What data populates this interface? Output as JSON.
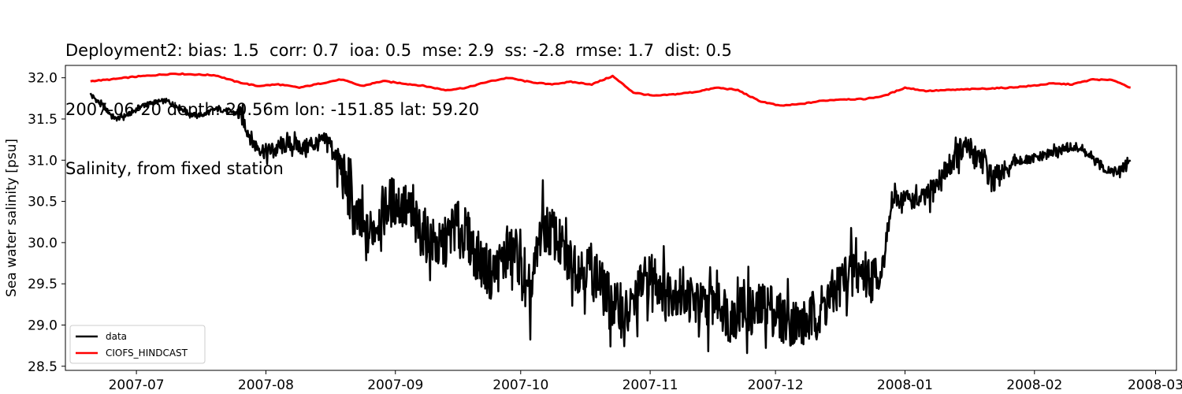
{
  "title": {
    "line1": "Deployment2: bias: 1.5  corr: 0.7  ioa: 0.5  mse: 2.9  ss: -2.8  rmse: 1.7  dist: 0.5",
    "line2": "2007-06-20 depth: 20.56m lon: -151.85 lat: 59.20",
    "line3": "Salinity, from fixed station"
  },
  "chart_data": {
    "type": "line",
    "xlabel": "",
    "ylabel": "Sea water salinity [psu]",
    "x_ticks": [
      "2007-07",
      "2007-08",
      "2007-09",
      "2007-10",
      "2007-11",
      "2007-12",
      "2008-01",
      "2008-02",
      "2008-03"
    ],
    "y_ticks": [
      "28.5",
      "29.0",
      "29.5",
      "30.0",
      "30.5",
      "31.0",
      "31.5",
      "32.0"
    ],
    "xlim": [
      "2007-06-14",
      "2008-03-06"
    ],
    "ylim": [
      28.45,
      32.15
    ],
    "grid": false,
    "legend": {
      "location": "lower-left",
      "entries": [
        "data",
        "CIOFS_HINDCAST"
      ]
    },
    "series": [
      {
        "name": "data",
        "color": "#000000",
        "x": [
          "2007-06-20",
          "2007-06-23",
          "2007-06-26",
          "2007-06-29",
          "2007-07-02",
          "2007-07-05",
          "2007-07-08",
          "2007-07-11",
          "2007-07-14",
          "2007-07-17",
          "2007-07-20",
          "2007-07-23",
          "2007-07-26",
          "2007-07-29",
          "2007-08-01",
          "2007-08-04",
          "2007-08-07",
          "2007-08-10",
          "2007-08-13",
          "2007-08-16",
          "2007-08-19",
          "2007-08-22",
          "2007-08-25",
          "2007-08-28",
          "2007-08-31",
          "2007-09-03",
          "2007-09-06",
          "2007-09-09",
          "2007-09-12",
          "2007-09-15",
          "2007-09-18",
          "2007-09-21",
          "2007-09-24",
          "2007-09-27",
          "2007-09-30",
          "2007-10-03",
          "2007-10-06",
          "2007-10-09",
          "2007-10-12",
          "2007-10-15",
          "2007-10-18",
          "2007-10-21",
          "2007-10-24",
          "2007-10-27",
          "2007-10-30",
          "2007-11-02",
          "2007-11-05",
          "2007-11-08",
          "2007-11-11",
          "2007-11-14",
          "2007-11-17",
          "2007-11-20",
          "2007-11-23",
          "2007-11-26",
          "2007-11-29",
          "2007-12-02",
          "2007-12-05",
          "2007-12-08",
          "2007-12-11",
          "2007-12-14",
          "2007-12-17",
          "2007-12-20",
          "2007-12-23",
          "2007-12-26",
          "2007-12-29",
          "2008-01-01",
          "2008-01-04",
          "2008-01-07",
          "2008-01-10",
          "2008-01-13",
          "2008-01-16",
          "2008-01-19",
          "2008-01-22",
          "2008-01-25",
          "2008-01-28",
          "2008-01-31",
          "2008-02-03",
          "2008-02-06",
          "2008-02-09",
          "2008-02-12",
          "2008-02-15",
          "2008-02-18",
          "2008-02-21",
          "2008-02-24"
        ],
        "y": [
          31.8,
          31.65,
          31.5,
          31.55,
          31.65,
          31.7,
          31.72,
          31.65,
          31.55,
          31.55,
          31.62,
          31.6,
          31.55,
          31.2,
          31.1,
          31.15,
          31.2,
          31.15,
          31.2,
          31.25,
          30.9,
          30.35,
          30.05,
          30.3,
          30.5,
          30.45,
          30.2,
          30.05,
          29.9,
          30.2,
          30.1,
          29.8,
          29.6,
          29.8,
          29.9,
          29.2,
          30.2,
          30.1,
          29.8,
          29.7,
          29.7,
          29.4,
          29.2,
          29.1,
          29.5,
          29.6,
          29.4,
          29.45,
          29.3,
          29.2,
          29.35,
          29.1,
          29.2,
          29.15,
          29.25,
          29.1,
          29.05,
          29.0,
          29.15,
          29.3,
          29.55,
          29.7,
          29.6,
          29.55,
          30.5,
          30.55,
          30.5,
          30.6,
          30.8,
          31.05,
          31.15,
          31.05,
          30.75,
          30.85,
          31.0,
          31.0,
          31.05,
          31.1,
          31.15,
          31.15,
          31.0,
          30.9,
          30.85,
          31.0
        ]
      },
      {
        "name": "CIOFS_HINDCAST",
        "color": "#ff0000",
        "x": [
          "2007-06-20",
          "2007-06-25",
          "2007-06-30",
          "2007-07-05",
          "2007-07-10",
          "2007-07-15",
          "2007-07-20",
          "2007-07-25",
          "2007-07-30",
          "2007-08-04",
          "2007-08-09",
          "2007-08-14",
          "2007-08-19",
          "2007-08-24",
          "2007-08-29",
          "2007-09-03",
          "2007-09-08",
          "2007-09-13",
          "2007-09-18",
          "2007-09-23",
          "2007-09-28",
          "2007-10-03",
          "2007-10-08",
          "2007-10-13",
          "2007-10-18",
          "2007-10-23",
          "2007-10-28",
          "2007-11-02",
          "2007-11-07",
          "2007-11-12",
          "2007-11-17",
          "2007-11-22",
          "2007-11-27",
          "2007-12-02",
          "2007-12-07",
          "2007-12-12",
          "2007-12-17",
          "2007-12-22",
          "2007-12-27",
          "2008-01-01",
          "2008-01-06",
          "2008-01-11",
          "2008-01-16",
          "2008-01-21",
          "2008-01-26",
          "2008-01-31",
          "2008-02-05",
          "2008-02-10",
          "2008-02-15",
          "2008-02-20",
          "2008-02-24"
        ],
        "y": [
          31.96,
          31.98,
          32.01,
          32.03,
          32.05,
          32.04,
          32.03,
          31.95,
          31.9,
          31.92,
          31.88,
          31.93,
          31.98,
          31.9,
          31.96,
          31.93,
          31.9,
          31.85,
          31.88,
          31.95,
          32.0,
          31.95,
          31.92,
          31.95,
          31.92,
          32.02,
          31.82,
          31.78,
          31.8,
          31.83,
          31.88,
          31.85,
          31.72,
          31.66,
          31.68,
          31.72,
          31.74,
          31.74,
          31.78,
          31.88,
          31.84,
          31.85,
          31.86,
          31.87,
          31.88,
          31.9,
          31.93,
          31.92,
          31.98,
          31.97,
          31.88
        ]
      }
    ]
  }
}
